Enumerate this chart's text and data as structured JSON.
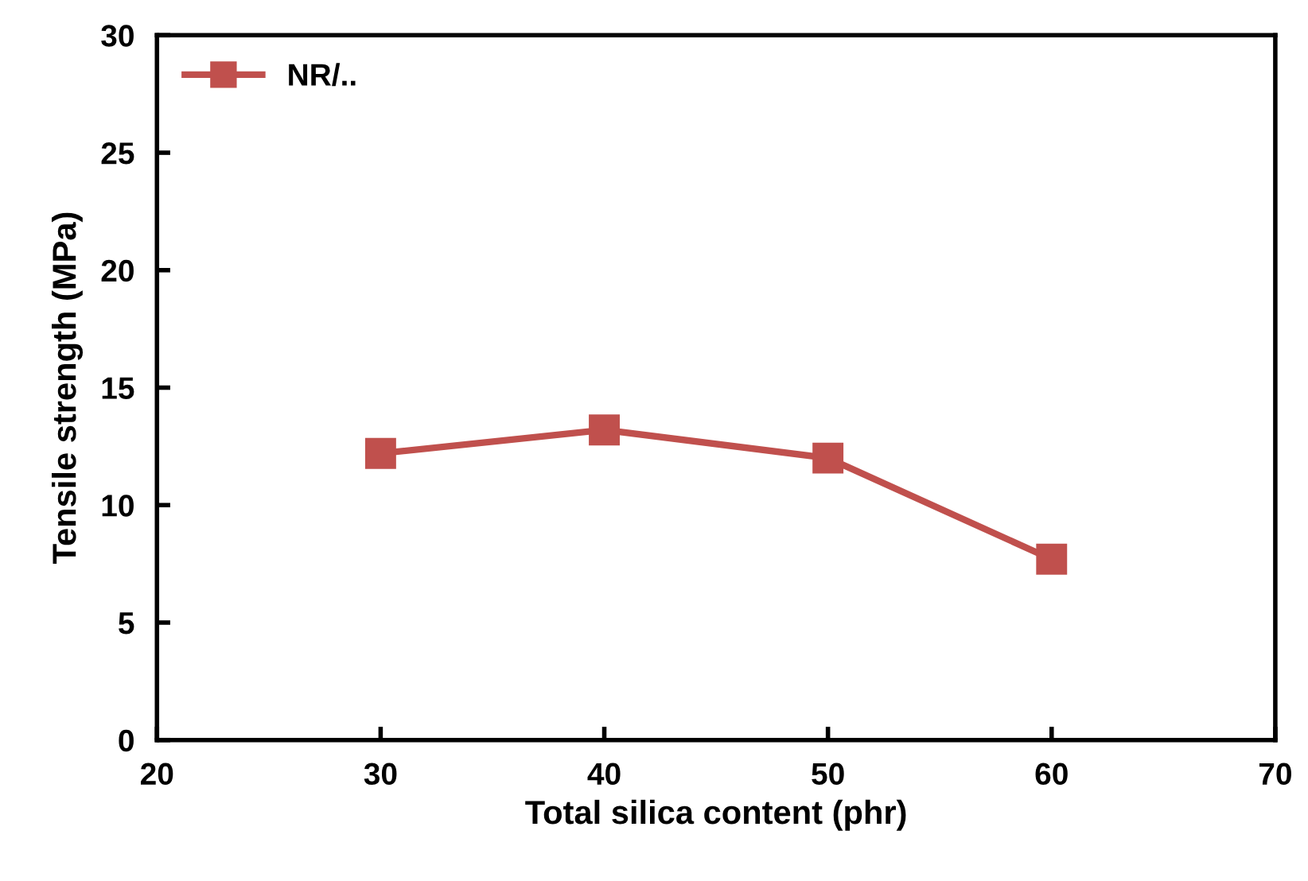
{
  "chart_data": {
    "type": "line",
    "xlabel": "Total silica content (phr)",
    "ylabel": "Tensile strength (MPa)",
    "x": [
      30,
      40,
      50,
      60
    ],
    "series": [
      {
        "name": "NR/..",
        "color": "#c0504d",
        "values": [
          12.2,
          13.2,
          12.0,
          7.7
        ]
      }
    ],
    "xlim": [
      20,
      70
    ],
    "xticks": [
      20,
      30,
      40,
      50,
      60,
      70
    ],
    "ylim": [
      0,
      30
    ],
    "yticks": [
      0,
      5,
      10,
      15,
      20,
      25,
      30
    ],
    "marker": "square",
    "line_style": "solid",
    "grid": false,
    "legend": "top left"
  }
}
